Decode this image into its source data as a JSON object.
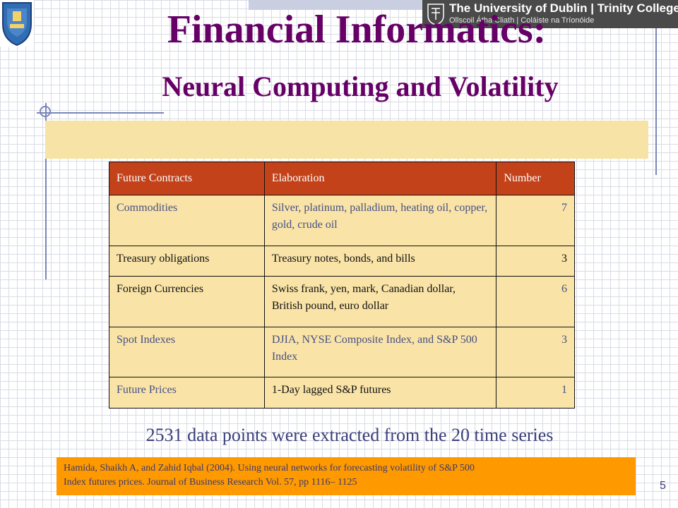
{
  "header": {
    "university_line1": "The University of Dublin | Trinity College",
    "university_line2": "Ollscoil Átha Cliath | Coláiste na Tríonóide",
    "crest_icon": "university-crest-icon",
    "logo_icon": "trinity-logo-icon"
  },
  "slide": {
    "title": "Financial Informatics:",
    "subtitle": "Neural Computing and Volatility",
    "note": "2531 data points were extracted from the 20 time series",
    "reference_line1": "Hamida, Shaikh A, and  Zahid Iqbal (2004). Using neural networks for forecasting volatility of S&P 500",
    "reference_line2": "Index futures prices.  Journal of Business Research Vol. 57, pp 1116– 1125",
    "page_number": "5"
  },
  "table": {
    "headers": [
      "Future Contracts",
      "Elaboration",
      "Number"
    ],
    "rows": [
      {
        "contract": "Commodities",
        "elaboration": "Silver, platinum, palladium, heating oil, copper, gold, crude oil",
        "number": "7"
      },
      {
        "contract": "Treasury obligations",
        "elaboration": "Treasury notes, bonds, and bills",
        "number": "3"
      },
      {
        "contract": "Foreign Currencies",
        "elaboration": "Swiss frank, yen, mark, Canadian dollar, British pound, euro dollar",
        "number": "6"
      },
      {
        "contract": "Spot Indexes",
        "elaboration": "DJIA, NYSE Composite Index, and S&P 500 Index",
        "number": "3"
      },
      {
        "contract": "Future Prices",
        "elaboration": "1-Day lagged S&P futures",
        "number": "1"
      }
    ]
  },
  "colors": {
    "title": "#660066",
    "header_fill": "#c3421a",
    "cell_fill": "#f9e3a7",
    "reference_fill": "#ff9900",
    "accent_text": "#3b3f7a"
  }
}
